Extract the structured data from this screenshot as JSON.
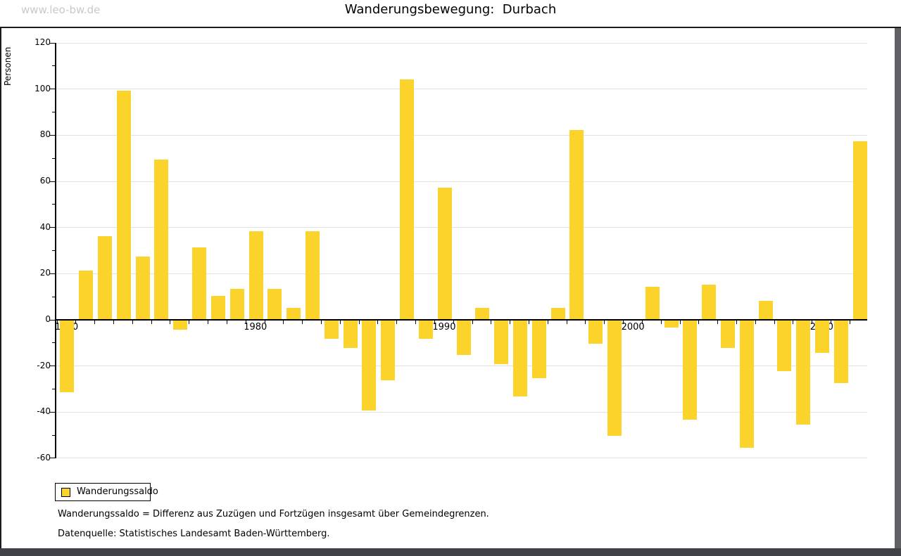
{
  "window": {
    "watermark": "www.leo-bw.de",
    "title": "Wanderungsbewegung:  Durbach"
  },
  "legend": {
    "label": "Wanderungssaldo"
  },
  "footnotes": [
    "Wanderungssaldo = Differenz aus Zuzügen und Fortzügen insgesamt über Gemeindegrenzen.",
    "Datenquelle: Statistisches Landesamt Baden-Württemberg."
  ],
  "colors": {
    "bar": "#fcd32b",
    "grid": "#e2e2e2",
    "axis": "#000000",
    "watermark": "#c9c9c9",
    "bottom_band": "#3f4246",
    "right_band": "#5f6164"
  },
  "chart_data": {
    "type": "bar",
    "title": "Wanderungsbewegung: Durbach",
    "ylabel": "Personen",
    "xlabel": "",
    "ylim": [
      -60,
      120
    ],
    "ytick_step": 20,
    "grid": true,
    "legend_position": "bottom-left",
    "x_label_years": [
      1970,
      1980,
      1990,
      2000,
      2010
    ],
    "series_name": "Wanderungssaldo",
    "categories": [
      1970,
      1971,
      1972,
      1973,
      1974,
      1975,
      1976,
      1977,
      1978,
      1979,
      1980,
      1981,
      1982,
      1983,
      1984,
      1985,
      1986,
      1987,
      1988,
      1989,
      1990,
      1991,
      1992,
      1993,
      1994,
      1995,
      1996,
      1997,
      1998,
      1999,
      2000,
      2001,
      2002,
      2003,
      2004,
      2005,
      2006,
      2007,
      2008,
      2009,
      2010,
      2011,
      2012
    ],
    "values": [
      -31,
      21,
      36,
      99,
      27,
      69,
      -4,
      31,
      10,
      13,
      38,
      13,
      5,
      38,
      -8,
      -12,
      -39,
      -26,
      104,
      -8,
      57,
      -15,
      5,
      -19,
      -33,
      -25,
      5,
      82,
      -10,
      -50,
      0,
      14,
      -3,
      -43,
      15,
      -12,
      -55,
      8,
      -22,
      -45,
      -14,
      -27,
      77
    ]
  }
}
